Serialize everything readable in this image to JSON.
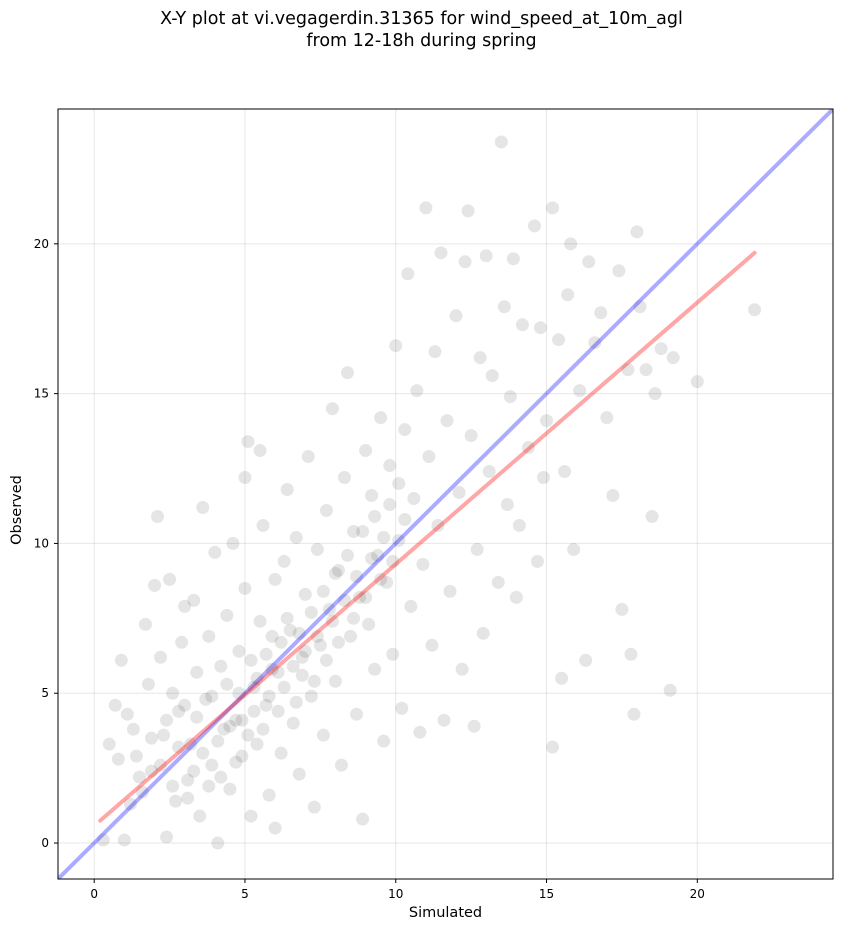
{
  "chart_data": {
    "type": "scatter",
    "title_line1": "X-Y plot at vi.vegagerdin.31365 for wind_speed_at_10m_agl",
    "title_line2": "from 12-18h during spring",
    "xlabel": "Simulated",
    "ylabel": "Observed",
    "xlim": [
      -1.2,
      24.5
    ],
    "ylim": [
      -1.2,
      24.5
    ],
    "xticks": [
      "0",
      "5",
      "10",
      "15",
      "20"
    ],
    "yticks": [
      "0",
      "5",
      "10",
      "15",
      "20"
    ],
    "grid": true,
    "point_color": "#000000",
    "point_alpha": 0.1,
    "identity_line": {
      "color": "#0000ff",
      "alpha": 0.33,
      "x": [
        -1.2,
        24.5
      ],
      "y": [
        -1.2,
        24.5
      ]
    },
    "regression_line": {
      "color": "#ff0000",
      "alpha": 0.35,
      "x": [
        0.2,
        21.9
      ],
      "y": [
        0.75,
        19.7
      ]
    },
    "series": [
      {
        "points": [
          [
            0.3,
            0.1
          ],
          [
            0.5,
            3.3
          ],
          [
            0.7,
            4.6
          ],
          [
            0.8,
            2.8
          ],
          [
            0.9,
            6.1
          ],
          [
            1.0,
            0.1
          ],
          [
            1.1,
            4.3
          ],
          [
            1.2,
            1.3
          ],
          [
            1.3,
            3.8
          ],
          [
            1.5,
            2.2
          ],
          [
            1.7,
            7.3
          ],
          [
            1.8,
            5.3
          ],
          [
            1.9,
            2.4
          ],
          [
            2.0,
            8.6
          ],
          [
            2.1,
            10.9
          ],
          [
            2.2,
            6.2
          ],
          [
            2.3,
            3.6
          ],
          [
            2.4,
            0.2
          ],
          [
            2.5,
            8.8
          ],
          [
            2.6,
            5.0
          ],
          [
            2.7,
            1.4
          ],
          [
            2.8,
            4.4
          ],
          [
            2.9,
            6.7
          ],
          [
            3.0,
            7.9
          ],
          [
            3.1,
            2.1
          ],
          [
            3.2,
            3.3
          ],
          [
            3.3,
            8.1
          ],
          [
            3.4,
            5.7
          ],
          [
            3.5,
            0.9
          ],
          [
            3.6,
            11.2
          ],
          [
            3.7,
            4.8
          ],
          [
            3.8,
            6.9
          ],
          [
            3.9,
            2.6
          ],
          [
            4.0,
            9.7
          ],
          [
            4.1,
            0.0
          ],
          [
            4.2,
            5.9
          ],
          [
            4.3,
            3.8
          ],
          [
            4.4,
            7.6
          ],
          [
            4.5,
            1.8
          ],
          [
            4.6,
            10.0
          ],
          [
            4.7,
            4.1
          ],
          [
            4.8,
            6.4
          ],
          [
            4.9,
            2.9
          ],
          [
            5.0,
            8.5
          ],
          [
            5.0,
            12.2
          ],
          [
            5.1,
            13.4
          ],
          [
            5.2,
            0.9
          ],
          [
            5.3,
            5.2
          ],
          [
            5.4,
            3.3
          ],
          [
            5.5,
            7.4
          ],
          [
            5.5,
            13.1
          ],
          [
            5.6,
            10.6
          ],
          [
            5.7,
            4.6
          ],
          [
            5.8,
            1.6
          ],
          [
            5.9,
            6.9
          ],
          [
            6.0,
            8.8
          ],
          [
            6.0,
            0.5
          ],
          [
            6.1,
            5.7
          ],
          [
            6.2,
            3.0
          ],
          [
            6.3,
            9.4
          ],
          [
            6.4,
            11.8
          ],
          [
            6.5,
            7.1
          ],
          [
            6.6,
            4.0
          ],
          [
            6.7,
            10.2
          ],
          [
            6.8,
            2.3
          ],
          [
            6.9,
            6.2
          ],
          [
            7.0,
            8.3
          ],
          [
            7.1,
            12.9
          ],
          [
            7.2,
            4.9
          ],
          [
            7.3,
            1.2
          ],
          [
            7.4,
            9.8
          ],
          [
            7.5,
            6.6
          ],
          [
            7.6,
            3.6
          ],
          [
            7.7,
            11.1
          ],
          [
            7.8,
            7.8
          ],
          [
            7.9,
            14.5
          ],
          [
            8.0,
            5.4
          ],
          [
            8.1,
            9.1
          ],
          [
            8.2,
            2.6
          ],
          [
            8.3,
            12.2
          ],
          [
            8.4,
            15.7
          ],
          [
            8.5,
            6.9
          ],
          [
            8.6,
            10.4
          ],
          [
            8.7,
            4.3
          ],
          [
            8.8,
            8.2
          ],
          [
            8.9,
            0.8
          ],
          [
            9.0,
            13.1
          ],
          [
            9.1,
            7.3
          ],
          [
            9.2,
            11.6
          ],
          [
            9.3,
            5.8
          ],
          [
            9.4,
            9.6
          ],
          [
            9.5,
            14.2
          ],
          [
            9.6,
            3.4
          ],
          [
            9.7,
            8.7
          ],
          [
            9.8,
            12.6
          ],
          [
            9.9,
            6.3
          ],
          [
            10.0,
            16.6
          ],
          [
            10.1,
            10.1
          ],
          [
            10.2,
            4.5
          ],
          [
            10.3,
            13.8
          ],
          [
            10.4,
            19.0
          ],
          [
            10.5,
            7.9
          ],
          [
            10.6,
            11.5
          ],
          [
            10.7,
            15.1
          ],
          [
            10.8,
            3.7
          ],
          [
            10.9,
            9.3
          ],
          [
            11.0,
            21.2
          ],
          [
            11.1,
            12.9
          ],
          [
            11.2,
            6.6
          ],
          [
            11.3,
            16.4
          ],
          [
            11.4,
            10.6
          ],
          [
            11.5,
            19.7
          ],
          [
            11.6,
            4.1
          ],
          [
            11.7,
            14.1
          ],
          [
            11.8,
            8.4
          ],
          [
            12.0,
            17.6
          ],
          [
            12.1,
            11.7
          ],
          [
            12.2,
            5.8
          ],
          [
            12.3,
            19.4
          ],
          [
            12.4,
            21.1
          ],
          [
            12.5,
            13.6
          ],
          [
            12.6,
            3.9
          ],
          [
            12.7,
            9.8
          ],
          [
            12.8,
            16.2
          ],
          [
            12.9,
            7.0
          ],
          [
            13.0,
            19.6
          ],
          [
            13.1,
            12.4
          ],
          [
            13.2,
            15.6
          ],
          [
            13.4,
            8.7
          ],
          [
            13.5,
            23.4
          ],
          [
            13.6,
            17.9
          ],
          [
            13.7,
            11.3
          ],
          [
            13.8,
            14.9
          ],
          [
            13.9,
            19.5
          ],
          [
            14.0,
            8.2
          ],
          [
            14.1,
            10.6
          ],
          [
            14.2,
            17.3
          ],
          [
            14.4,
            13.2
          ],
          [
            14.6,
            20.6
          ],
          [
            14.7,
            9.4
          ],
          [
            14.8,
            17.2
          ],
          [
            14.9,
            12.2
          ],
          [
            15.0,
            14.1
          ],
          [
            15.2,
            3.2
          ],
          [
            15.2,
            21.2
          ],
          [
            15.4,
            16.8
          ],
          [
            15.5,
            5.5
          ],
          [
            15.6,
            12.4
          ],
          [
            15.7,
            18.3
          ],
          [
            15.8,
            20.0
          ],
          [
            15.9,
            9.8
          ],
          [
            16.1,
            15.1
          ],
          [
            16.3,
            6.1
          ],
          [
            16.4,
            19.4
          ],
          [
            16.6,
            16.7
          ],
          [
            16.8,
            17.7
          ],
          [
            17.0,
            14.2
          ],
          [
            17.2,
            11.6
          ],
          [
            17.4,
            19.1
          ],
          [
            17.5,
            7.8
          ],
          [
            17.7,
            15.8
          ],
          [
            17.8,
            6.3
          ],
          [
            17.9,
            4.3
          ],
          [
            18.0,
            20.4
          ],
          [
            18.1,
            17.9
          ],
          [
            18.3,
            15.8
          ],
          [
            18.5,
            10.9
          ],
          [
            18.6,
            15.0
          ],
          [
            18.8,
            16.5
          ],
          [
            19.1,
            5.1
          ],
          [
            19.2,
            16.2
          ],
          [
            20.0,
            15.4
          ],
          [
            21.9,
            17.8
          ],
          [
            1.4,
            2.9
          ],
          [
            1.6,
            1.7
          ],
          [
            1.9,
            3.5
          ],
          [
            2.2,
            2.6
          ],
          [
            2.4,
            4.1
          ],
          [
            2.6,
            1.9
          ],
          [
            2.8,
            3.2
          ],
          [
            3.0,
            4.6
          ],
          [
            3.1,
            1.5
          ],
          [
            3.3,
            2.4
          ],
          [
            3.4,
            4.2
          ],
          [
            3.6,
            3.0
          ],
          [
            3.8,
            1.9
          ],
          [
            3.9,
            4.9
          ],
          [
            4.1,
            3.4
          ],
          [
            4.2,
            2.2
          ],
          [
            4.4,
            5.3
          ],
          [
            4.5,
            3.9
          ],
          [
            4.7,
            2.7
          ],
          [
            4.8,
            5.0
          ],
          [
            4.9,
            4.1
          ],
          [
            5.1,
            3.6
          ],
          [
            5.2,
            6.1
          ],
          [
            5.3,
            4.4
          ],
          [
            5.4,
            5.5
          ],
          [
            5.6,
            3.8
          ],
          [
            5.7,
            6.3
          ],
          [
            5.8,
            4.9
          ],
          [
            5.9,
            5.8
          ],
          [
            6.1,
            4.4
          ],
          [
            6.2,
            6.7
          ],
          [
            6.3,
            5.2
          ],
          [
            6.4,
            7.5
          ],
          [
            6.6,
            5.9
          ],
          [
            6.7,
            4.7
          ],
          [
            6.8,
            7.0
          ],
          [
            6.9,
            5.6
          ],
          [
            7.0,
            6.4
          ],
          [
            7.2,
            7.7
          ],
          [
            7.3,
            5.4
          ],
          [
            7.4,
            6.9
          ],
          [
            7.6,
            8.4
          ],
          [
            7.7,
            6.1
          ],
          [
            7.9,
            7.4
          ],
          [
            8.0,
            9.0
          ],
          [
            8.1,
            6.7
          ],
          [
            8.3,
            8.1
          ],
          [
            8.4,
            9.6
          ],
          [
            8.6,
            7.5
          ],
          [
            8.7,
            8.9
          ],
          [
            8.9,
            10.4
          ],
          [
            9.0,
            8.2
          ],
          [
            9.2,
            9.5
          ],
          [
            9.3,
            10.9
          ],
          [
            9.5,
            8.8
          ],
          [
            9.6,
            10.2
          ],
          [
            9.8,
            11.3
          ],
          [
            9.9,
            9.4
          ],
          [
            10.1,
            12.0
          ],
          [
            10.3,
            10.8
          ]
        ]
      }
    ]
  }
}
